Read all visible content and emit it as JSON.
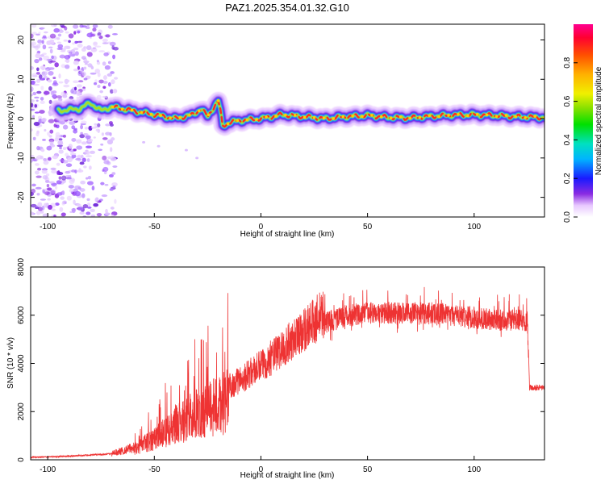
{
  "title": "PAZ1.2025.354.01.32.G10",
  "chart_data": [
    {
      "type": "heatmap",
      "name": "spectrogram",
      "xlabel": "Height of straight line (km)",
      "ylabel": "Frequency (Hz)",
      "xlim": [
        -108,
        133
      ],
      "ylim": [
        -25,
        24
      ],
      "x_ticks": [
        -100,
        -50,
        0,
        50,
        100
      ],
      "x_tick_labels": [
        "-100",
        "-50",
        "0",
        "50",
        "100"
      ],
      "y_ticks": [
        20,
        10,
        0,
        -10,
        -20
      ],
      "y_tick_labels": [
        "20",
        "10",
        "0",
        "-10",
        "-20"
      ],
      "colorbar": {
        "label": "Normalized spectral amplitude",
        "range": [
          0,
          1
        ],
        "ticks": [
          0.0,
          0.2,
          0.4,
          0.6,
          0.8
        ],
        "tick_labels": [
          "0.0",
          "0.2",
          "0.4",
          "0.6",
          "0.8"
        ],
        "colormap": "rainbow"
      },
      "ridge": {
        "x": [
          -95,
          -85,
          -80,
          -75,
          -70,
          -60,
          -50,
          -40,
          -32,
          -28,
          -25,
          -22,
          -20,
          -19,
          -18,
          -15,
          -10,
          0,
          10,
          20,
          30,
          40,
          50,
          60,
          70,
          80,
          90,
          100,
          110,
          120,
          133
        ],
        "y": [
          2,
          2.5,
          4,
          2,
          3,
          2,
          1,
          0,
          1,
          2.5,
          0.5,
          3,
          4.5,
          2,
          -2,
          -1,
          -0.5,
          0,
          1,
          0.5,
          0,
          0.5,
          0.8,
          0.3,
          0.2,
          0.6,
          0.9,
          1.0,
          0.8,
          0.5,
          0.3
        ]
      }
    },
    {
      "type": "line",
      "name": "snr",
      "xlabel": "Height of straight line (km)",
      "ylabel": "SNR (10 * v/v)",
      "xlim": [
        -108,
        133
      ],
      "ylim": [
        0,
        8000
      ],
      "x_ticks": [
        -100,
        -50,
        0,
        50,
        100
      ],
      "x_tick_labels": [
        "-100",
        "-50",
        "0",
        "50",
        "100"
      ],
      "y_ticks": [
        0,
        2000,
        4000,
        6000,
        8000
      ],
      "y_tick_labels": [
        "0",
        "2000",
        "4000",
        "6000",
        "8000"
      ],
      "color": "#ee3333",
      "envelope": {
        "x": [
          -108,
          -90,
          -70,
          -60,
          -55,
          -50,
          -40,
          -30,
          -20,
          -10,
          0,
          10,
          20,
          30,
          40,
          50,
          60,
          70,
          80,
          90,
          100,
          110,
          120,
          125,
          126,
          133
        ],
        "y": [
          100,
          150,
          250,
          500,
          800,
          1100,
          1800,
          2400,
          2800,
          3300,
          3900,
          4600,
          5400,
          6100,
          6400,
          6500,
          6500,
          6500,
          6500,
          6400,
          6300,
          6200,
          6200,
          6200,
          3000,
          3000
        ]
      }
    }
  ]
}
